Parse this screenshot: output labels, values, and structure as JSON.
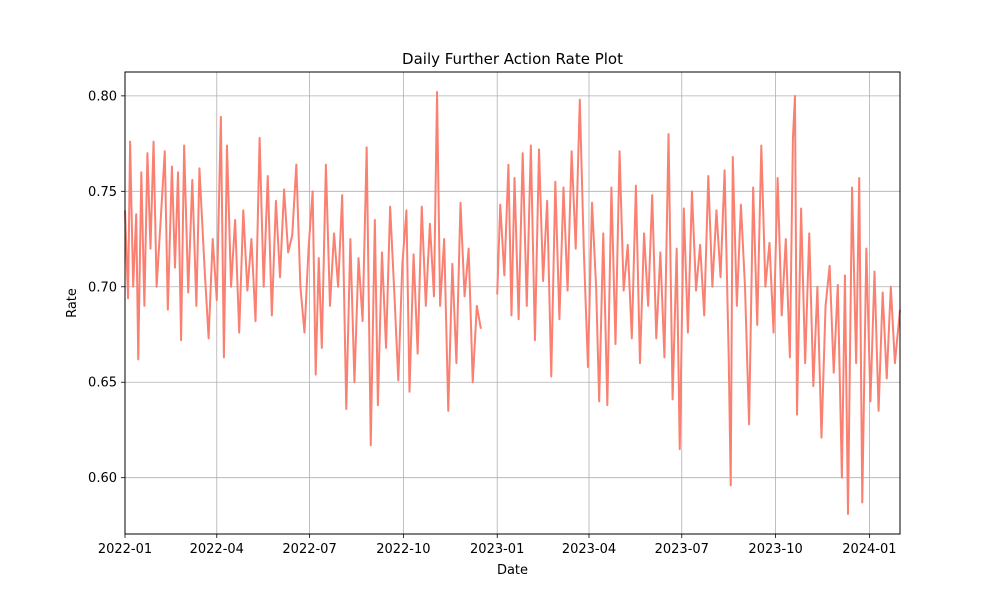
{
  "chart_data": {
    "type": "line",
    "title": "Daily Further Action Rate Plot",
    "xlabel": "Date",
    "ylabel": "Rate",
    "xlim": [
      "2022-01-01",
      "2024-01-31"
    ],
    "ylim": [
      0.5705,
      0.8125
    ],
    "grid": true,
    "x_ticks": [
      "2022-01",
      "2022-04",
      "2022-07",
      "2022-10",
      "2023-01",
      "2023-04",
      "2023-07",
      "2023-10",
      "2024-01"
    ],
    "y_ticks": [
      "0.60",
      "0.65",
      "0.70",
      "0.75",
      "0.80"
    ],
    "line_color": "#fa8072",
    "gap": [
      "2022-12-20",
      "2022-12-31"
    ],
    "series": [
      {
        "values": [
          [
            "2022-01-01",
            0.74
          ],
          [
            "2022-01-04",
            0.694
          ],
          [
            "2022-01-06",
            0.776
          ],
          [
            "2022-01-09",
            0.7
          ],
          [
            "2022-01-12",
            0.738
          ],
          [
            "2022-01-14",
            0.662
          ],
          [
            "2022-01-17",
            0.76
          ],
          [
            "2022-01-20",
            0.69
          ],
          [
            "2022-01-23",
            0.77
          ],
          [
            "2022-01-26",
            0.72
          ],
          [
            "2022-01-29",
            0.776
          ],
          [
            "2022-02-01",
            0.7
          ],
          [
            "2022-02-05",
            0.735
          ],
          [
            "2022-02-09",
            0.771
          ],
          [
            "2022-02-12",
            0.688
          ],
          [
            "2022-02-16",
            0.763
          ],
          [
            "2022-02-19",
            0.71
          ],
          [
            "2022-02-22",
            0.76
          ],
          [
            "2022-02-25",
            0.672
          ],
          [
            "2022-02-28",
            0.774
          ],
          [
            "2022-03-04",
            0.697
          ],
          [
            "2022-03-08",
            0.756
          ],
          [
            "2022-03-12",
            0.69
          ],
          [
            "2022-03-15",
            0.762
          ],
          [
            "2022-03-20",
            0.71
          ],
          [
            "2022-03-24",
            0.673
          ],
          [
            "2022-03-28",
            0.725
          ],
          [
            "2022-04-01",
            0.693
          ],
          [
            "2022-04-05",
            0.789
          ],
          [
            "2022-04-08",
            0.663
          ],
          [
            "2022-04-11",
            0.774
          ],
          [
            "2022-04-15",
            0.7
          ],
          [
            "2022-04-19",
            0.735
          ],
          [
            "2022-04-23",
            0.676
          ],
          [
            "2022-04-27",
            0.74
          ],
          [
            "2022-05-01",
            0.698
          ],
          [
            "2022-05-05",
            0.725
          ],
          [
            "2022-05-09",
            0.682
          ],
          [
            "2022-05-13",
            0.778
          ],
          [
            "2022-05-17",
            0.7
          ],
          [
            "2022-05-21",
            0.758
          ],
          [
            "2022-05-25",
            0.685
          ],
          [
            "2022-05-29",
            0.745
          ],
          [
            "2022-06-02",
            0.705
          ],
          [
            "2022-06-06",
            0.751
          ],
          [
            "2022-06-10",
            0.718
          ],
          [
            "2022-06-14",
            0.727
          ],
          [
            "2022-06-18",
            0.764
          ],
          [
            "2022-06-22",
            0.7
          ],
          [
            "2022-06-26",
            0.676
          ],
          [
            "2022-06-30",
            0.72
          ],
          [
            "2022-07-04",
            0.75
          ],
          [
            "2022-07-07",
            0.654
          ],
          [
            "2022-07-10",
            0.715
          ],
          [
            "2022-07-13",
            0.668
          ],
          [
            "2022-07-17",
            0.764
          ],
          [
            "2022-07-21",
            0.69
          ],
          [
            "2022-07-25",
            0.728
          ],
          [
            "2022-07-29",
            0.7
          ],
          [
            "2022-08-02",
            0.748
          ],
          [
            "2022-08-06",
            0.636
          ],
          [
            "2022-08-10",
            0.725
          ],
          [
            "2022-08-14",
            0.65
          ],
          [
            "2022-08-18",
            0.715
          ],
          [
            "2022-08-22",
            0.682
          ],
          [
            "2022-08-26",
            0.773
          ],
          [
            "2022-08-30",
            0.617
          ],
          [
            "2022-09-03",
            0.735
          ],
          [
            "2022-09-06",
            0.638
          ],
          [
            "2022-09-10",
            0.718
          ],
          [
            "2022-09-14",
            0.668
          ],
          [
            "2022-09-18",
            0.742
          ],
          [
            "2022-09-22",
            0.698
          ],
          [
            "2022-09-26",
            0.651
          ],
          [
            "2022-09-30",
            0.712
          ],
          [
            "2022-10-04",
            0.74
          ],
          [
            "2022-10-07",
            0.645
          ],
          [
            "2022-10-11",
            0.717
          ],
          [
            "2022-10-15",
            0.665
          ],
          [
            "2022-10-19",
            0.742
          ],
          [
            "2022-10-23",
            0.69
          ],
          [
            "2022-10-27",
            0.733
          ],
          [
            "2022-10-31",
            0.695
          ],
          [
            "2022-11-03",
            0.802
          ],
          [
            "2022-11-06",
            0.69
          ],
          [
            "2022-11-10",
            0.725
          ],
          [
            "2022-11-14",
            0.635
          ],
          [
            "2022-11-18",
            0.712
          ],
          [
            "2022-11-22",
            0.66
          ],
          [
            "2022-11-26",
            0.744
          ],
          [
            "2022-11-30",
            0.695
          ],
          [
            "2022-12-04",
            0.72
          ],
          [
            "2022-12-08",
            0.65
          ],
          [
            "2022-12-12",
            0.69
          ],
          [
            "2022-12-16",
            0.678
          ],
          [
            "2023-01-01",
            0.696
          ],
          [
            "2023-01-04",
            0.743
          ],
          [
            "2023-01-08",
            0.706
          ],
          [
            "2023-01-12",
            0.764
          ],
          [
            "2023-01-15",
            0.685
          ],
          [
            "2023-01-18",
            0.757
          ],
          [
            "2023-01-22",
            0.683
          ],
          [
            "2023-01-26",
            0.77
          ],
          [
            "2023-01-30",
            0.69
          ],
          [
            "2023-02-03",
            0.774
          ],
          [
            "2023-02-07",
            0.672
          ],
          [
            "2023-02-11",
            0.772
          ],
          [
            "2023-02-15",
            0.703
          ],
          [
            "2023-02-19",
            0.745
          ],
          [
            "2023-02-23",
            0.653
          ],
          [
            "2023-02-27",
            0.755
          ],
          [
            "2023-03-03",
            0.683
          ],
          [
            "2023-03-07",
            0.752
          ],
          [
            "2023-03-11",
            0.698
          ],
          [
            "2023-03-15",
            0.771
          ],
          [
            "2023-03-19",
            0.72
          ],
          [
            "2023-03-23",
            0.798
          ],
          [
            "2023-03-27",
            0.718
          ],
          [
            "2023-03-31",
            0.658
          ],
          [
            "2023-04-04",
            0.744
          ],
          [
            "2023-04-08",
            0.7
          ],
          [
            "2023-04-11",
            0.64
          ],
          [
            "2023-04-15",
            0.728
          ],
          [
            "2023-04-19",
            0.638
          ],
          [
            "2023-04-23",
            0.752
          ],
          [
            "2023-04-27",
            0.67
          ],
          [
            "2023-05-01",
            0.771
          ],
          [
            "2023-05-05",
            0.698
          ],
          [
            "2023-05-09",
            0.722
          ],
          [
            "2023-05-13",
            0.673
          ],
          [
            "2023-05-17",
            0.753
          ],
          [
            "2023-05-21",
            0.66
          ],
          [
            "2023-05-25",
            0.728
          ],
          [
            "2023-05-29",
            0.69
          ],
          [
            "2023-06-02",
            0.748
          ],
          [
            "2023-06-06",
            0.673
          ],
          [
            "2023-06-10",
            0.718
          ],
          [
            "2023-06-14",
            0.663
          ],
          [
            "2023-06-18",
            0.78
          ],
          [
            "2023-06-22",
            0.641
          ],
          [
            "2023-06-26",
            0.72
          ],
          [
            "2023-06-29",
            0.615
          ],
          [
            "2023-07-03",
            0.741
          ],
          [
            "2023-07-07",
            0.676
          ],
          [
            "2023-07-11",
            0.75
          ],
          [
            "2023-07-15",
            0.698
          ],
          [
            "2023-07-19",
            0.722
          ],
          [
            "2023-07-23",
            0.685
          ],
          [
            "2023-07-27",
            0.758
          ],
          [
            "2023-07-31",
            0.7
          ],
          [
            "2023-08-04",
            0.74
          ],
          [
            "2023-08-08",
            0.705
          ],
          [
            "2023-08-12",
            0.761
          ],
          [
            "2023-08-16",
            0.664
          ],
          [
            "2023-08-18",
            0.596
          ],
          [
            "2023-08-20",
            0.768
          ],
          [
            "2023-08-24",
            0.69
          ],
          [
            "2023-08-28",
            0.743
          ],
          [
            "2023-09-01",
            0.7
          ],
          [
            "2023-09-05",
            0.628
          ],
          [
            "2023-09-09",
            0.752
          ],
          [
            "2023-09-13",
            0.68
          ],
          [
            "2023-09-17",
            0.774
          ],
          [
            "2023-09-21",
            0.7
          ],
          [
            "2023-09-25",
            0.723
          ],
          [
            "2023-09-29",
            0.676
          ],
          [
            "2023-10-03",
            0.757
          ],
          [
            "2023-10-07",
            0.685
          ],
          [
            "2023-10-11",
            0.725
          ],
          [
            "2023-10-15",
            0.663
          ],
          [
            "2023-10-18",
            0.778
          ],
          [
            "2023-10-20",
            0.8
          ],
          [
            "2023-10-22",
            0.633
          ],
          [
            "2023-10-26",
            0.741
          ],
          [
            "2023-10-30",
            0.66
          ],
          [
            "2023-11-03",
            0.728
          ],
          [
            "2023-11-07",
            0.648
          ],
          [
            "2023-11-11",
            0.7
          ],
          [
            "2023-11-15",
            0.621
          ],
          [
            "2023-11-19",
            0.69
          ],
          [
            "2023-11-23",
            0.711
          ],
          [
            "2023-11-27",
            0.655
          ],
          [
            "2023-12-01",
            0.701
          ],
          [
            "2023-12-05",
            0.6
          ],
          [
            "2023-12-08",
            0.706
          ],
          [
            "2023-12-11",
            0.581
          ],
          [
            "2023-12-15",
            0.752
          ],
          [
            "2023-12-19",
            0.66
          ],
          [
            "2023-12-22",
            0.757
          ],
          [
            "2023-12-25",
            0.587
          ],
          [
            "2023-12-29",
            0.72
          ],
          [
            "2024-01-02",
            0.64
          ],
          [
            "2024-01-06",
            0.708
          ],
          [
            "2024-01-10",
            0.635
          ],
          [
            "2024-01-14",
            0.697
          ],
          [
            "2024-01-18",
            0.652
          ],
          [
            "2024-01-22",
            0.7
          ],
          [
            "2024-01-26",
            0.66
          ],
          [
            "2024-01-31",
            0.688
          ]
        ]
      }
    ]
  }
}
